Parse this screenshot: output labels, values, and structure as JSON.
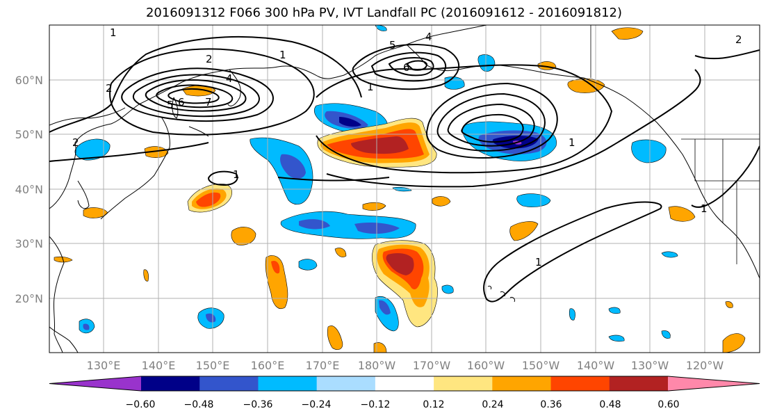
{
  "title": "2016091312 F066 300 hPa PV, IVT Landfall PC (2016091612 - 2016091812)",
  "map": {
    "lat_labels": [
      "60°N",
      "50°N",
      "40°N",
      "30°N",
      "20°N"
    ],
    "lon_labels": [
      "130°E",
      "140°E",
      "150°E",
      "160°E",
      "170°E",
      "180°W",
      "170°W",
      "160°W",
      "150°W",
      "140°W",
      "130°W",
      "120°W"
    ],
    "label_color": "#808080",
    "grid": true,
    "contour_labels": [
      "1",
      "2",
      "4",
      "5",
      "6",
      "7",
      "1",
      "2",
      "4",
      "5",
      "6",
      "1",
      "2",
      "1",
      "1",
      "1",
      "1",
      "2"
    ]
  },
  "colorbar": {
    "colors": [
      "#9933cc",
      "#000088",
      "#3355cc",
      "#00bbff",
      "#aaddff",
      "#ffffff",
      "#ffe680",
      "#ffa500",
      "#ff4500",
      "#b22222",
      "#ff88aa"
    ],
    "tick_labels": [
      "−0.60",
      "−0.48",
      "−0.36",
      "−0.24",
      "−0.12",
      "0.12",
      "0.24",
      "0.36",
      "0.48",
      "0.60"
    ]
  }
}
